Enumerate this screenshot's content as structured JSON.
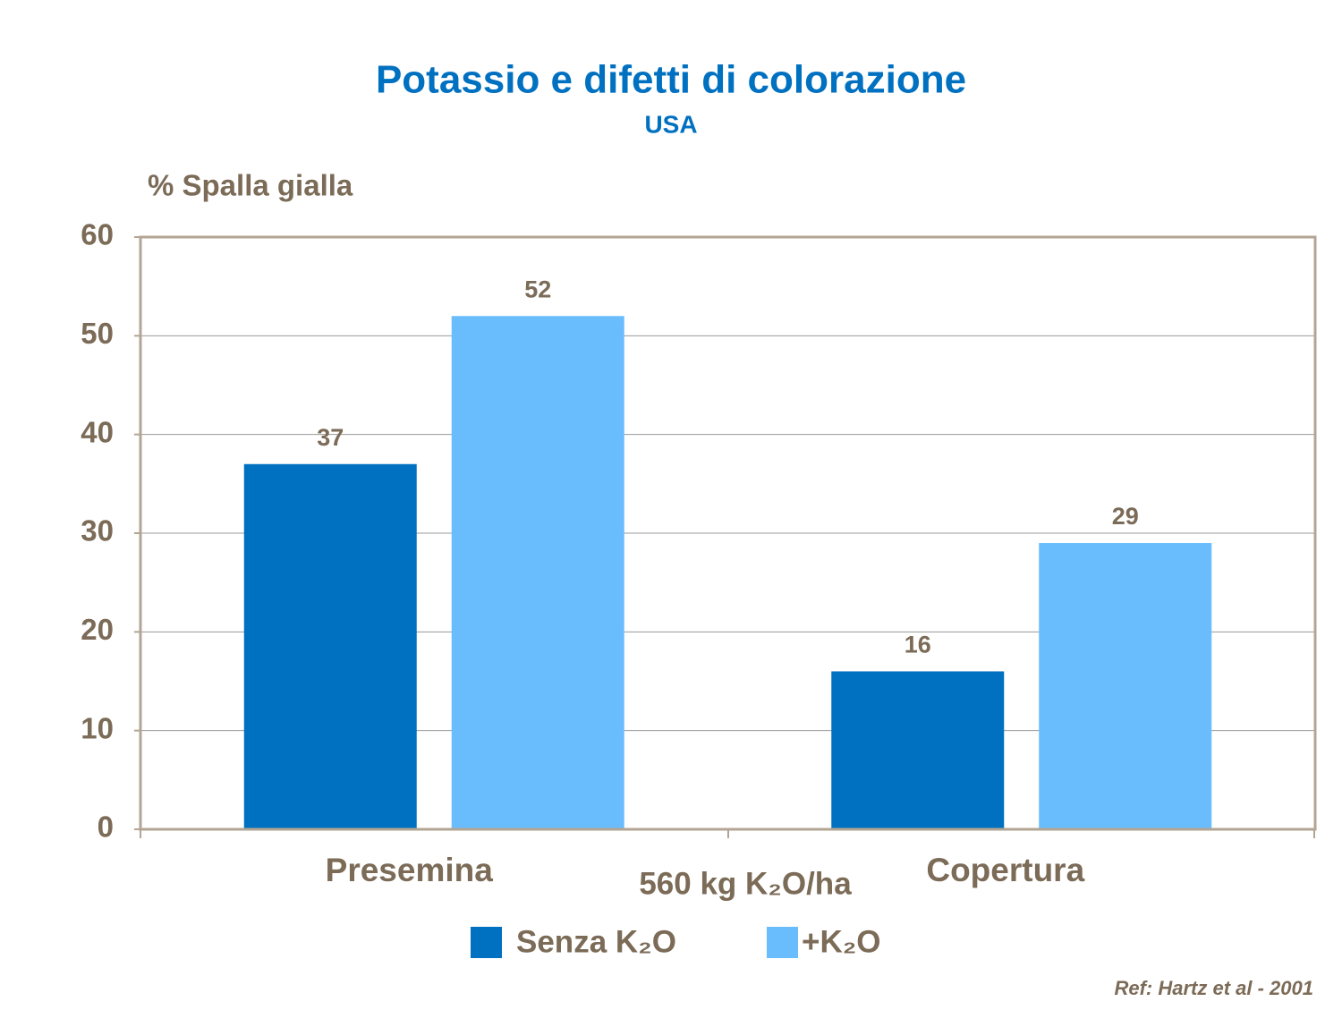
{
  "chart_data": {
    "type": "bar",
    "title": "Potassio e difetti di colorazione",
    "subtitle": "USA",
    "y_label": "% Spalla gialla",
    "x_label": "560 kg K₂O/ha",
    "reference": "Ref: Hartz et al - 2001",
    "categories": [
      "Presemina",
      "Copertura"
    ],
    "series": [
      {
        "name": "Senza K₂O",
        "color": "#0070c0",
        "values": [
          37,
          16
        ]
      },
      {
        "name": "+K₂O",
        "color": "#6abdfd",
        "values": [
          52,
          29
        ]
      }
    ],
    "ylim": [
      0,
      60
    ],
    "yticks": [
      0,
      10,
      20,
      30,
      40,
      50,
      60
    ],
    "grid": true
  }
}
